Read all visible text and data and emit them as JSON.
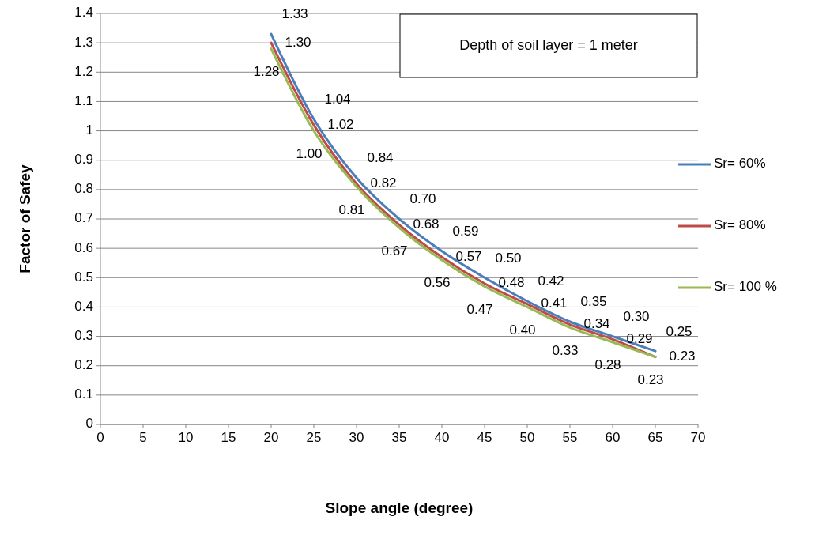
{
  "chart_data": {
    "type": "line",
    "xlabel": "Slope angle (degree)",
    "ylabel": "Factor of  Safey",
    "x": [
      20,
      25,
      30,
      35,
      40,
      45,
      50,
      55,
      60,
      65
    ],
    "series": [
      {
        "name": "Sr= 60%",
        "color": "#4a7ebb",
        "values": [
          1.33,
          1.04,
          0.84,
          0.7,
          0.59,
          0.5,
          0.42,
          0.35,
          0.3,
          0.25
        ],
        "value_labels": [
          "1.33",
          "1.04",
          "0.84",
          "0.70",
          "0.59",
          "0.50",
          "0.42",
          "0.35",
          "0.30",
          "0.25"
        ]
      },
      {
        "name": "Sr= 80%",
        "color": "#be4b48",
        "values": [
          1.3,
          1.02,
          0.82,
          0.68,
          0.57,
          0.48,
          0.41,
          0.34,
          0.29,
          0.23
        ],
        "value_labels": [
          "1.30",
          "1.02",
          "0.82",
          "0.68",
          "0.57",
          "0.48",
          "0.41",
          "0.34",
          "0.29",
          "0.23"
        ]
      },
      {
        "name": "Sr= 100 %",
        "color": "#98b954",
        "values": [
          1.28,
          1.0,
          0.81,
          0.67,
          0.56,
          0.47,
          0.4,
          0.33,
          0.28,
          0.23
        ],
        "value_labels": [
          "1.28",
          "1.00",
          "0.81",
          "0.67",
          "0.56",
          "0.47",
          "0.40",
          "0.33",
          "0.28",
          "0.23"
        ]
      }
    ],
    "xlim": [
      0,
      70
    ],
    "xticks": [
      0,
      5,
      10,
      15,
      20,
      25,
      30,
      35,
      40,
      45,
      50,
      55,
      60,
      65,
      70
    ],
    "ylim": [
      0,
      1.4
    ],
    "yticks": [
      0,
      0.1,
      0.2,
      0.3,
      0.4,
      0.5,
      0.6,
      0.7,
      0.8,
      0.9,
      1,
      1.1,
      1.2,
      1.3,
      1.4
    ],
    "grid": "y",
    "legend": "right",
    "annotations": [
      "Depth of soil layer  = 1 meter"
    ]
  }
}
